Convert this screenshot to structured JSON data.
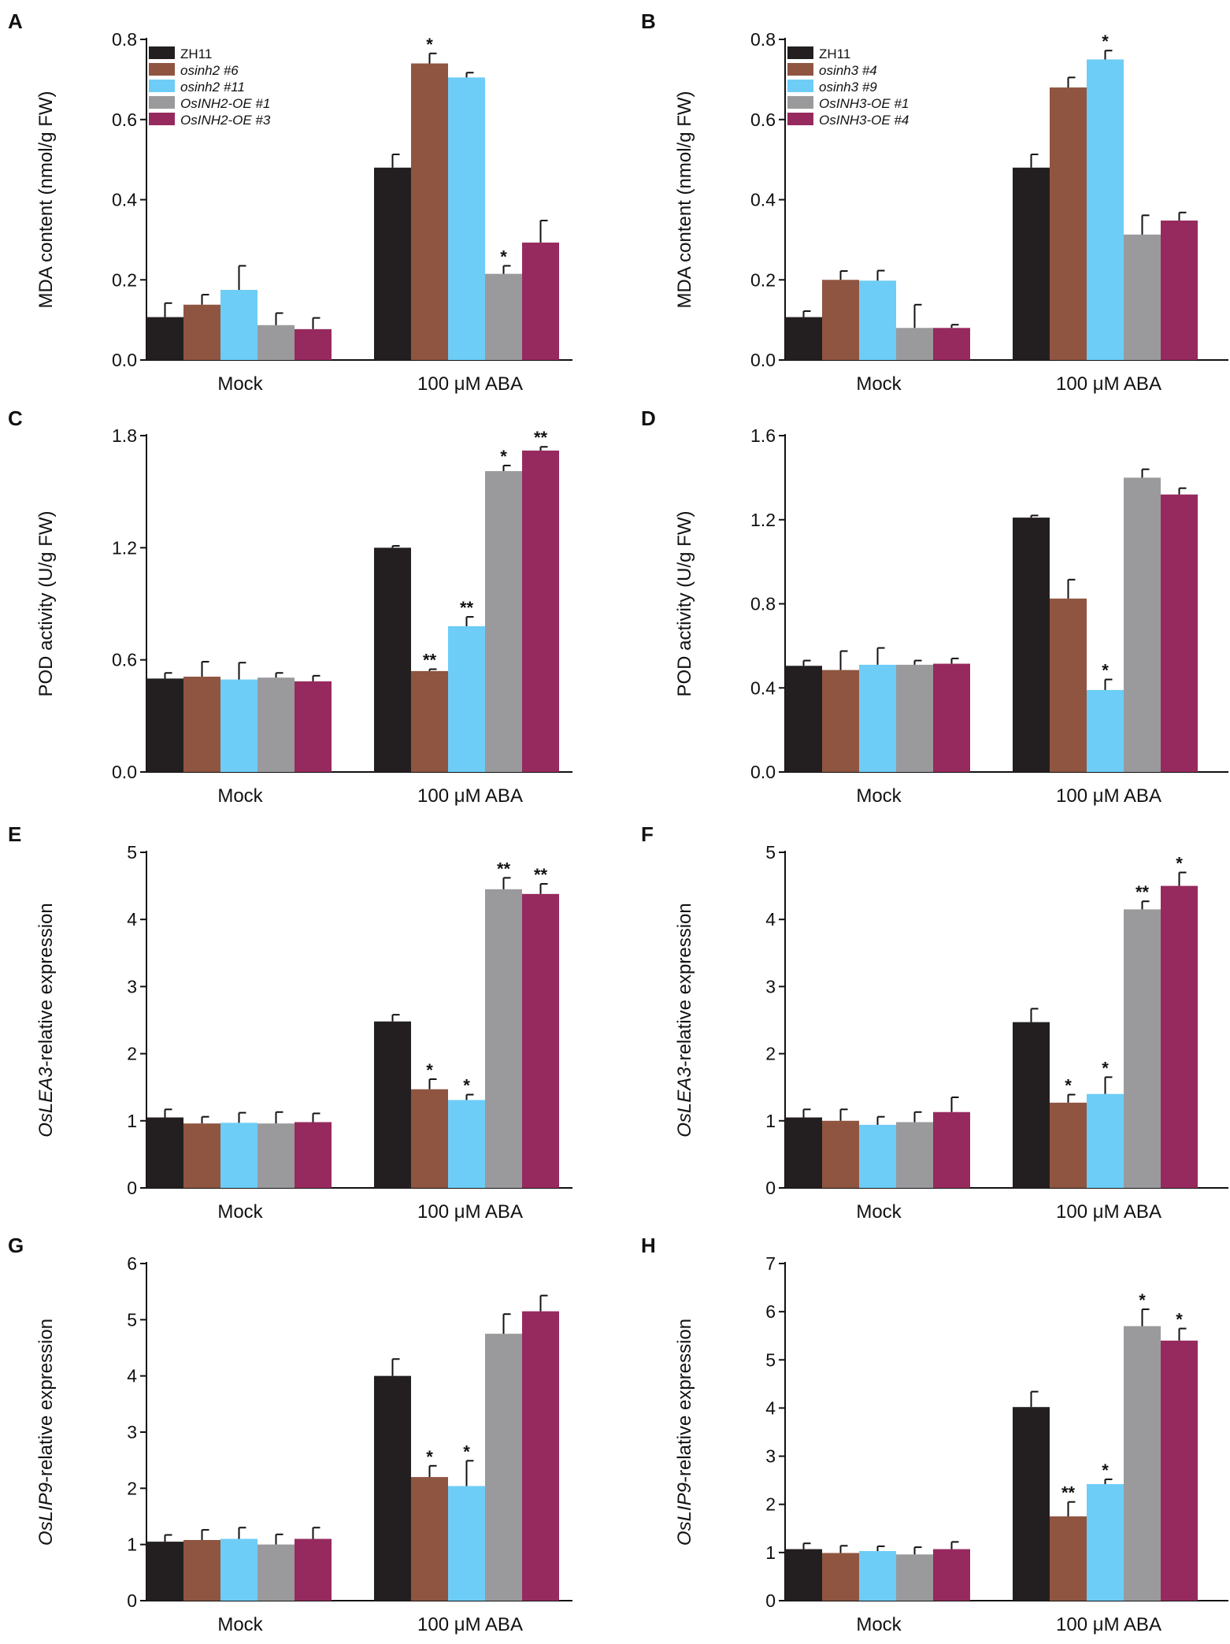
{
  "figure": {
    "colors": [
      "#231f20",
      "#8f5541",
      "#6dcdf6",
      "#9a9a9c",
      "#962a5e"
    ],
    "error_color": "#111111"
  },
  "chart_data": [
    {
      "panel": "A",
      "type": "bar",
      "ylabel": "MDA content (nmol/g FW)",
      "ylabel_italic_prefix": "",
      "ylim": [
        0,
        0.8
      ],
      "yticks": [
        "0.0",
        "0.2",
        "0.4",
        "0.6",
        "0.8"
      ],
      "categories": [
        "Mock",
        "100 μM ABA"
      ],
      "legend": [
        "ZH11",
        "osinh2 #6",
        "osinh2 #11",
        "OsINH2-OE #1",
        "OsINH2-OE #3"
      ],
      "series": [
        {
          "name": "ZH11",
          "values": [
            0.107,
            0.48
          ],
          "errors": [
            0.035,
            0.033
          ],
          "sig": [
            "",
            ""
          ]
        },
        {
          "name": "osinh2 #6",
          "values": [
            0.138,
            0.74
          ],
          "errors": [
            0.025,
            0.025
          ],
          "sig": [
            "",
            "*"
          ]
        },
        {
          "name": "osinh2 #11",
          "values": [
            0.175,
            0.705
          ],
          "errors": [
            0.06,
            0.012
          ],
          "sig": [
            "",
            ""
          ]
        },
        {
          "name": "OsINH2-OE #1",
          "values": [
            0.087,
            0.215
          ],
          "errors": [
            0.03,
            0.02
          ],
          "sig": [
            "",
            "*"
          ]
        },
        {
          "name": "OsINH2-OE #3",
          "values": [
            0.077,
            0.293
          ],
          "errors": [
            0.028,
            0.055
          ],
          "sig": [
            "",
            ""
          ]
        }
      ]
    },
    {
      "panel": "B",
      "type": "bar",
      "ylabel": "MDA content (nmol/g FW)",
      "ylabel_italic_prefix": "",
      "ylim": [
        0,
        0.8
      ],
      "yticks": [
        "0.0",
        "0.2",
        "0.4",
        "0.6",
        "0.8"
      ],
      "categories": [
        "Mock",
        "100 μM ABA"
      ],
      "legend": [
        "ZH11",
        "osinh3 #4",
        "osinh3 #9",
        "OsINH3-OE #1",
        "OsINH3-OE #4"
      ],
      "series": [
        {
          "name": "ZH11",
          "values": [
            0.107,
            0.48
          ],
          "errors": [
            0.015,
            0.033
          ],
          "sig": [
            "",
            ""
          ]
        },
        {
          "name": "osinh3 #4",
          "values": [
            0.2,
            0.68
          ],
          "errors": [
            0.022,
            0.025
          ],
          "sig": [
            "",
            ""
          ]
        },
        {
          "name": "osinh3 #9",
          "values": [
            0.198,
            0.75
          ],
          "errors": [
            0.025,
            0.022
          ],
          "sig": [
            "",
            "*"
          ]
        },
        {
          "name": "OsINH3-OE #1",
          "values": [
            0.08,
            0.313
          ],
          "errors": [
            0.058,
            0.048
          ],
          "sig": [
            "",
            ""
          ]
        },
        {
          "name": "OsINH3-OE #4",
          "values": [
            0.08,
            0.348
          ],
          "errors": [
            0.008,
            0.02
          ],
          "sig": [
            "",
            ""
          ]
        }
      ]
    },
    {
      "panel": "C",
      "type": "bar",
      "ylabel": "POD activity (U/g FW)",
      "ylabel_italic_prefix": "",
      "ylim": [
        0,
        1.8
      ],
      "yticks": [
        "0.0",
        "0.6",
        "1.2",
        "1.8"
      ],
      "categories": [
        "Mock",
        "100 μM ABA"
      ],
      "series": [
        {
          "name": "ZH11",
          "values": [
            0.5,
            1.2
          ],
          "errors": [
            0.03,
            0.01
          ],
          "sig": [
            "",
            ""
          ]
        },
        {
          "name": "osinh2 #6",
          "values": [
            0.51,
            0.54
          ],
          "errors": [
            0.08,
            0.01
          ],
          "sig": [
            "",
            "**"
          ]
        },
        {
          "name": "osinh2 #11",
          "values": [
            0.495,
            0.78
          ],
          "errors": [
            0.09,
            0.05
          ],
          "sig": [
            "",
            "**"
          ]
        },
        {
          "name": "OsINH2-OE #1",
          "values": [
            0.505,
            1.61
          ],
          "errors": [
            0.025,
            0.03
          ],
          "sig": [
            "",
            "*"
          ]
        },
        {
          "name": "OsINH2-OE #3",
          "values": [
            0.485,
            1.72
          ],
          "errors": [
            0.03,
            0.02
          ],
          "sig": [
            "",
            "**"
          ]
        }
      ]
    },
    {
      "panel": "D",
      "type": "bar",
      "ylabel": "POD activity (U/g FW)",
      "ylabel_italic_prefix": "",
      "ylim": [
        0,
        1.6
      ],
      "yticks": [
        "0.0",
        "0.4",
        "0.8",
        "1.2",
        "1.6"
      ],
      "categories": [
        "Mock",
        "100 μM ABA"
      ],
      "series": [
        {
          "name": "ZH11",
          "values": [
            0.505,
            1.21
          ],
          "errors": [
            0.025,
            0.01
          ],
          "sig": [
            "",
            ""
          ]
        },
        {
          "name": "osinh3 #4",
          "values": [
            0.485,
            0.825
          ],
          "errors": [
            0.09,
            0.09
          ],
          "sig": [
            "",
            ""
          ]
        },
        {
          "name": "osinh3 #9",
          "values": [
            0.51,
            0.39
          ],
          "errors": [
            0.08,
            0.05
          ],
          "sig": [
            "",
            "*"
          ]
        },
        {
          "name": "OsINH3-OE #1",
          "values": [
            0.51,
            1.4
          ],
          "errors": [
            0.02,
            0.04
          ],
          "sig": [
            "",
            ""
          ]
        },
        {
          "name": "OsINH3-OE #4",
          "values": [
            0.515,
            1.32
          ],
          "errors": [
            0.025,
            0.03
          ],
          "sig": [
            "",
            ""
          ]
        }
      ]
    },
    {
      "panel": "E",
      "type": "bar",
      "ylabel": "-relative expression",
      "ylabel_italic_prefix": "OsLEA3",
      "ylim": [
        0,
        5
      ],
      "yticks": [
        "0",
        "1",
        "2",
        "3",
        "4",
        "5"
      ],
      "categories": [
        "Mock",
        "100 μM ABA"
      ],
      "series": [
        {
          "name": "ZH11",
          "values": [
            1.05,
            2.48
          ],
          "errors": [
            0.12,
            0.1
          ],
          "sig": [
            "",
            ""
          ]
        },
        {
          "name": "osinh2 #6",
          "values": [
            0.96,
            1.47
          ],
          "errors": [
            0.1,
            0.15
          ],
          "sig": [
            "",
            "*"
          ]
        },
        {
          "name": "osinh2 #11",
          "values": [
            0.97,
            1.31
          ],
          "errors": [
            0.15,
            0.08
          ],
          "sig": [
            "",
            "*"
          ]
        },
        {
          "name": "OsINH2-OE #1",
          "values": [
            0.96,
            4.45
          ],
          "errors": [
            0.17,
            0.17
          ],
          "sig": [
            "",
            "**"
          ]
        },
        {
          "name": "OsINH2-OE #3",
          "values": [
            0.98,
            4.38
          ],
          "errors": [
            0.13,
            0.15
          ],
          "sig": [
            "",
            "**"
          ]
        }
      ]
    },
    {
      "panel": "F",
      "type": "bar",
      "ylabel": "-relative expression",
      "ylabel_italic_prefix": "OsLEA3",
      "ylim": [
        0,
        5
      ],
      "yticks": [
        "0",
        "1",
        "2",
        "3",
        "4",
        "5"
      ],
      "categories": [
        "Mock",
        "100 μM ABA"
      ],
      "series": [
        {
          "name": "ZH11",
          "values": [
            1.05,
            2.47
          ],
          "errors": [
            0.12,
            0.2
          ],
          "sig": [
            "",
            ""
          ]
        },
        {
          "name": "osinh3 #4",
          "values": [
            1.0,
            1.27
          ],
          "errors": [
            0.17,
            0.12
          ],
          "sig": [
            "",
            "*"
          ]
        },
        {
          "name": "osinh3 #9",
          "values": [
            0.94,
            1.4
          ],
          "errors": [
            0.12,
            0.25
          ],
          "sig": [
            "",
            "*"
          ]
        },
        {
          "name": "OsINH3-OE #1",
          "values": [
            0.98,
            4.15
          ],
          "errors": [
            0.15,
            0.12
          ],
          "sig": [
            "",
            "**"
          ]
        },
        {
          "name": "OsINH3-OE #4",
          "values": [
            1.13,
            4.5
          ],
          "errors": [
            0.22,
            0.2
          ],
          "sig": [
            "",
            "*"
          ]
        }
      ]
    },
    {
      "panel": "G",
      "type": "bar",
      "ylabel": "-relative expression",
      "ylabel_italic_prefix": "OsLIP9",
      "ylim": [
        0,
        6
      ],
      "yticks": [
        "0",
        "1",
        "2",
        "3",
        "4",
        "5",
        "6"
      ],
      "categories": [
        "Mock",
        "100 μM ABA"
      ],
      "series": [
        {
          "name": "ZH11",
          "values": [
            1.05,
            4.0
          ],
          "errors": [
            0.12,
            0.3
          ],
          "sig": [
            "",
            ""
          ]
        },
        {
          "name": "osinh2 #6",
          "values": [
            1.08,
            2.2
          ],
          "errors": [
            0.18,
            0.2
          ],
          "sig": [
            "",
            "*"
          ]
        },
        {
          "name": "osinh2 #11",
          "values": [
            1.1,
            2.04
          ],
          "errors": [
            0.2,
            0.45
          ],
          "sig": [
            "",
            "*"
          ]
        },
        {
          "name": "OsINH2-OE #1",
          "values": [
            1.0,
            4.75
          ],
          "errors": [
            0.18,
            0.35
          ],
          "sig": [
            "",
            ""
          ]
        },
        {
          "name": "OsINH2-OE #3",
          "values": [
            1.1,
            5.15
          ],
          "errors": [
            0.2,
            0.28
          ],
          "sig": [
            "",
            ""
          ]
        }
      ]
    },
    {
      "panel": "H",
      "type": "bar",
      "ylabel": "-relative expression",
      "ylabel_italic_prefix": "OsLIP9",
      "ylim": [
        0,
        7
      ],
      "yticks": [
        "0",
        "1",
        "2",
        "3",
        "4",
        "5",
        "6",
        "7"
      ],
      "categories": [
        "Mock",
        "100 μM ABA"
      ],
      "series": [
        {
          "name": "ZH11",
          "values": [
            1.07,
            4.02
          ],
          "errors": [
            0.12,
            0.32
          ],
          "sig": [
            "",
            ""
          ]
        },
        {
          "name": "osinh3 #4",
          "values": [
            0.99,
            1.75
          ],
          "errors": [
            0.15,
            0.3
          ],
          "sig": [
            "",
            "**"
          ]
        },
        {
          "name": "osinh3 #9",
          "values": [
            1.03,
            2.42
          ],
          "errors": [
            0.1,
            0.1
          ],
          "sig": [
            "",
            "*"
          ]
        },
        {
          "name": "OsINH3-OE #1",
          "values": [
            0.96,
            5.7
          ],
          "errors": [
            0.15,
            0.35
          ],
          "sig": [
            "",
            "*"
          ]
        },
        {
          "name": "OsINH3-OE #4",
          "values": [
            1.07,
            5.4
          ],
          "errors": [
            0.15,
            0.25
          ],
          "sig": [
            "",
            "*"
          ]
        }
      ]
    }
  ]
}
